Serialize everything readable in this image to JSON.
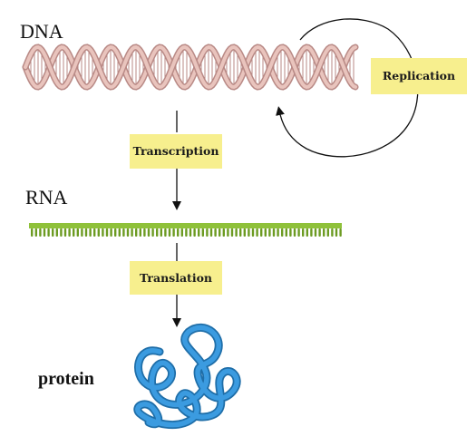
{
  "labels": {
    "dna": "DNA",
    "rna": "RNA",
    "protein": "protein"
  },
  "steps": {
    "replication": "Replication",
    "transcription": "Transcription",
    "translation": "Translation"
  },
  "colors": {
    "dna_strand": "#b98a86",
    "dna_fill": "#e9c4bd",
    "rna_backbone": "#8fc13a",
    "rna_base": "#6c9b22",
    "protein": "#2f86c7",
    "box": "#f7ef8e",
    "arrow": "#111111"
  }
}
